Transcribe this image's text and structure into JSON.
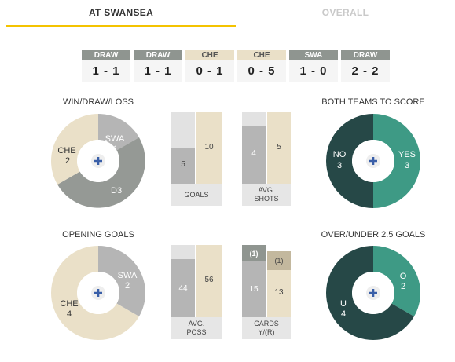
{
  "tabs": {
    "active": "AT SWANSEA",
    "inactive": "OVERALL"
  },
  "results": [
    {
      "label": "DRAW",
      "score": "1 - 1",
      "color": "grey"
    },
    {
      "label": "DRAW",
      "score": "1 - 1",
      "color": "grey"
    },
    {
      "label": "CHE",
      "score": "0 - 1",
      "color": "tan"
    },
    {
      "label": "CHE",
      "score": "0 - 5",
      "color": "tan"
    },
    {
      "label": "SWA",
      "score": "1 - 0",
      "color": "grey"
    },
    {
      "label": "DRAW",
      "score": "2 - 2",
      "color": "grey"
    }
  ],
  "colors": {
    "swa": "#b5b5b5",
    "che": "#eae0c8",
    "draw": "#959995",
    "dark_green": "#264847",
    "teal": "#3e9a85",
    "yellow": "#f4c300"
  },
  "wdl": {
    "title": "WIN/DRAW/LOSS",
    "swa_label": "SWA",
    "swa_value": "1",
    "che_label": "CHE",
    "che_value": "2",
    "draw_label": "D",
    "draw_value": "3"
  },
  "btts": {
    "title": "BOTH TEAMS TO SCORE",
    "no_label": "NO",
    "no_value": "3",
    "yes_label": "YES",
    "yes_value": "3"
  },
  "opening": {
    "title": "OPENING GOALS",
    "swa_label": "SWA",
    "swa_value": "2",
    "che_label": "CHE",
    "che_value": "4"
  },
  "overunder": {
    "title": "OVER/UNDER 2.5 GOALS",
    "o_label": "O",
    "o_value": "2",
    "u_label": "U",
    "u_value": "4"
  },
  "goals": {
    "label": "GOALS",
    "swa": "5",
    "che": "10"
  },
  "shots": {
    "label1": "AVG.",
    "label2": "SHOTS",
    "swa": "4",
    "che": "5"
  },
  "poss": {
    "label1": "AVG.",
    "label2": "POSS",
    "swa": "44",
    "che": "56"
  },
  "cards": {
    "label1": "CARDS",
    "label2": "Y/(R)",
    "swa_y": "15",
    "swa_r": "(1)",
    "che_y": "13",
    "che_r": "(1)"
  },
  "center_icon": "plus-icon"
}
